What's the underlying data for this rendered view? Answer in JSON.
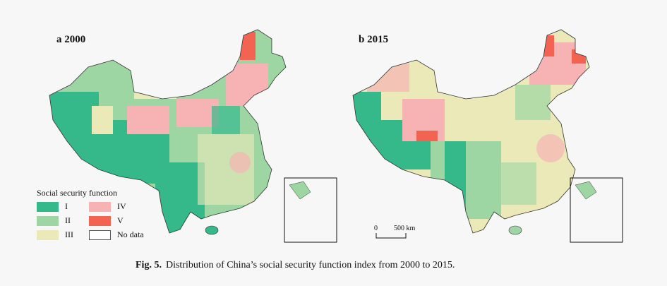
{
  "panels": [
    {
      "label": "a 2000"
    },
    {
      "label": "b 2015"
    }
  ],
  "legend": {
    "title": "Social security function",
    "items": [
      {
        "label": "I",
        "color": "#35b98a"
      },
      {
        "label": "IV",
        "color": "#f7b3b3"
      },
      {
        "label": "II",
        "color": "#9dd6a3"
      },
      {
        "label": "V",
        "color": "#f26352"
      },
      {
        "label": "III",
        "color": "#ece9b9"
      },
      {
        "label": "No data",
        "color": "#ffffff"
      }
    ]
  },
  "scale_bar": {
    "start": "0",
    "end": "500 km"
  },
  "caption": {
    "prefix": "Fig. 5.",
    "text": "Distribution of China’s social security function index from 2000 to 2015."
  }
}
